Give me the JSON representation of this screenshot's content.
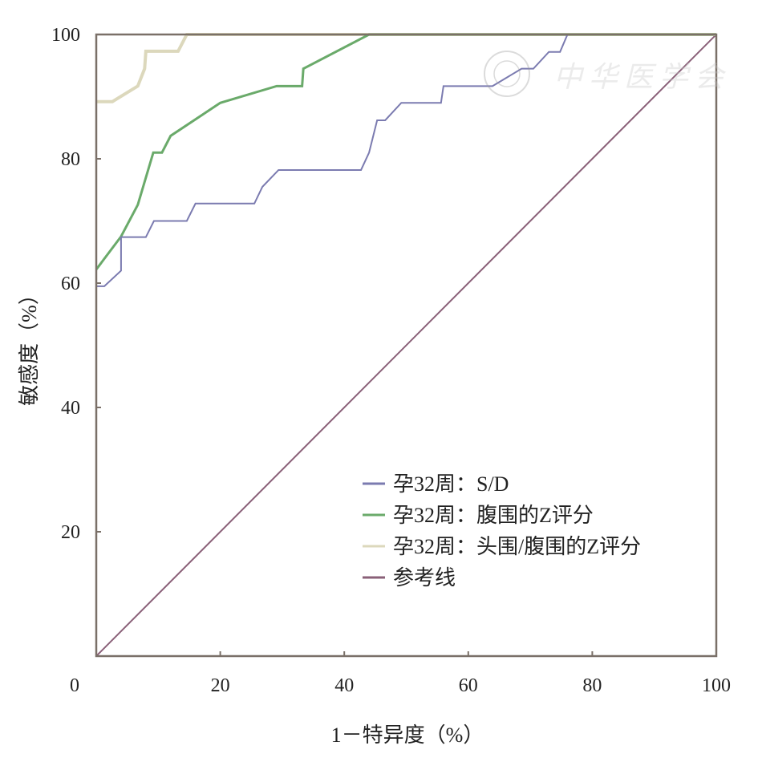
{
  "chart_data": {
    "type": "line",
    "title": "",
    "xlabel": "1－特异度（%）",
    "ylabel": "敏感度（%）",
    "xlim": [
      0,
      100
    ],
    "ylim": [
      0,
      100
    ],
    "x_ticks": [
      "0",
      "20",
      "40",
      "60",
      "80",
      "100"
    ],
    "y_ticks": [
      "20",
      "40",
      "60",
      "80",
      "100"
    ],
    "grid": false,
    "legend_position": "bottom-right",
    "watermark": "中华医学会",
    "series": [
      {
        "name": "孕32周：S/D",
        "color": "#7b7bb0",
        "x": [
          0,
          1.3,
          4,
          4,
          8,
          9.3,
          14.6,
          16,
          25.5,
          26.8,
          29.4,
          42.7,
          44,
          45.3,
          46.6,
          49.2,
          55.6,
          56,
          63.9,
          68.6,
          70.5,
          73,
          74.8,
          76,
          100
        ],
        "y": [
          59.5,
          59.5,
          62,
          67.4,
          67.4,
          70,
          70,
          72.8,
          72.8,
          75.5,
          78.2,
          78.2,
          81,
          86.2,
          86.2,
          89,
          89,
          91.7,
          91.7,
          94.5,
          94.5,
          97.2,
          97.2,
          100,
          100
        ]
      },
      {
        "name": "孕32周：腹围的Z评分",
        "color": "#6aaa6a",
        "x": [
          0,
          4,
          6.7,
          9.2,
          10.6,
          12,
          20,
          29.1,
          33.2,
          33.4,
          44,
          100
        ],
        "y": [
          62.2,
          67.5,
          72.6,
          81,
          81,
          83.7,
          89,
          91.7,
          91.7,
          94.5,
          100,
          100
        ]
      },
      {
        "name": "孕32周：头围/腹围的Z评分",
        "color": "#dcd8bc",
        "x": [
          0,
          2.6,
          6.7,
          7.8,
          8,
          13.2,
          14.6,
          100
        ],
        "y": [
          89.2,
          89.2,
          91.7,
          94.5,
          97.3,
          97.3,
          100,
          100
        ]
      },
      {
        "name": "参考线",
        "color": "#8a6078",
        "x": [
          0,
          100
        ],
        "y": [
          0,
          100
        ]
      }
    ]
  }
}
